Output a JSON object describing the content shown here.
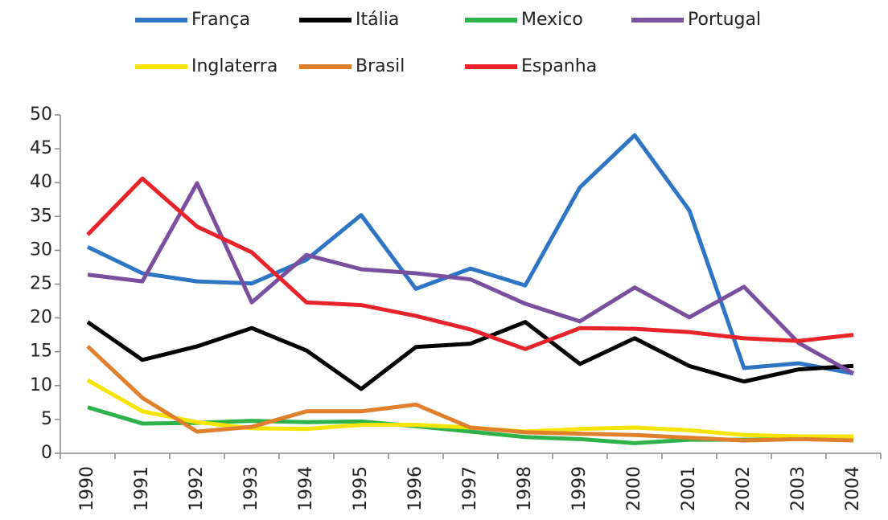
{
  "chart_data": {
    "type": "line",
    "categories": [
      "1990",
      "1991",
      "1992",
      "1993",
      "1994",
      "1995",
      "1996",
      "1997",
      "1998",
      "1999",
      "2000",
      "2001",
      "2002",
      "2003",
      "2004"
    ],
    "series": [
      {
        "name": "França",
        "color": "#2e75c6",
        "values": [
          30.5,
          26.6,
          25.4,
          25.1,
          28.6,
          35.2,
          24.3,
          27.3,
          24.8,
          39.3,
          47,
          35.9,
          12.6,
          13.3,
          11.8
        ]
      },
      {
        "name": "Itália",
        "color": "#000000",
        "values": [
          19.4,
          13.8,
          15.8,
          18.5,
          15.2,
          9.5,
          15.7,
          16.2,
          19.4,
          13.2,
          17,
          12.9,
          10.6,
          12.4,
          12.9
        ]
      },
      {
        "name": "Mexico",
        "color": "#2db34a",
        "values": [
          6.8,
          4.4,
          4.5,
          4.8,
          4.6,
          4.7,
          4.0,
          3.2,
          2.4,
          2.1,
          1.5,
          2.0,
          2.0,
          2.1,
          2.0
        ]
      },
      {
        "name": "Portugal",
        "color": "#7a4f9e",
        "values": [
          26.4,
          25.4,
          39.9,
          22.3,
          29.3,
          27.2,
          26.6,
          25.7,
          22.1,
          19.5,
          24.5,
          20.1,
          24.6,
          16.3,
          11.8
        ]
      },
      {
        "name": "Inglaterra",
        "color": "#f5e400",
        "values": [
          10.8,
          6.2,
          4.6,
          3.7,
          3.6,
          4.2,
          4.2,
          3.8,
          3.2,
          3.6,
          3.8,
          3.4,
          2.7,
          2.5,
          2.5
        ]
      },
      {
        "name": "Brasil",
        "color": "#e07f2c",
        "values": [
          15.8,
          8.2,
          3.2,
          3.9,
          6.2,
          6.2,
          7.2,
          3.8,
          3.1,
          2.9,
          2.7,
          2.3,
          1.9,
          2.1,
          1.9
        ]
      },
      {
        "name": "Espanha",
        "color": "#e8232a",
        "values": [
          32.3,
          40.6,
          33.5,
          29.7,
          22.3,
          21.9,
          20.3,
          18.3,
          15.4,
          18.5,
          18.4,
          17.9,
          17,
          16.6,
          17.5
        ]
      }
    ],
    "ylim": [
      0,
      50
    ],
    "yticks": [
      0,
      5,
      10,
      15,
      20,
      25,
      30,
      35,
      40,
      45,
      50
    ],
    "grid": false,
    "legend": "top"
  }
}
